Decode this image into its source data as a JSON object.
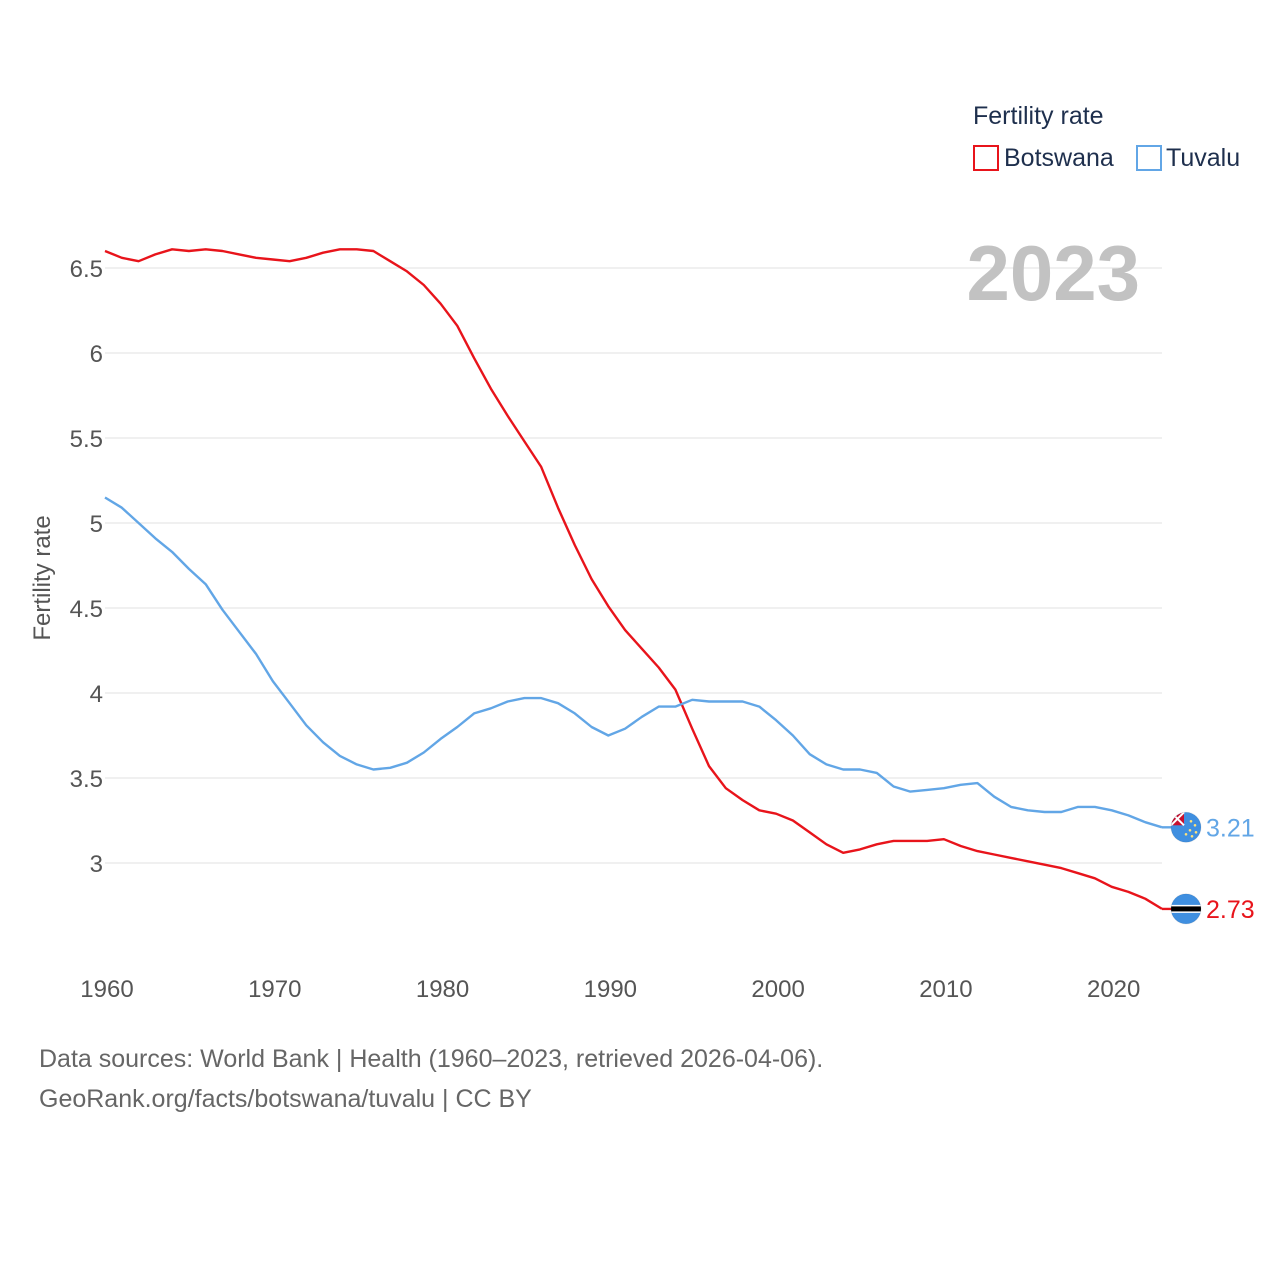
{
  "chart_data": {
    "type": "line",
    "title": "",
    "ylabel": "Fertility rate",
    "xlabel": "",
    "year_display": "2023",
    "legend": {
      "title": "Fertility rate",
      "position": "top-right"
    },
    "xlim": [
      1960,
      2023
    ],
    "ylim": [
      2.5,
      6.7
    ],
    "x_ticks": [
      1960,
      1970,
      1980,
      1990,
      2000,
      2010,
      2020
    ],
    "x_tick_labels": [
      "1960",
      "1970",
      "1980",
      "1990",
      "2000",
      "2010",
      "2020"
    ],
    "y_ticks": [
      3,
      3.5,
      4,
      4.5,
      5,
      5.5,
      6,
      6.5
    ],
    "y_tick_labels": [
      "3",
      "3.5",
      "4",
      "4.5",
      "5",
      "5.5",
      "6",
      "6.5"
    ],
    "grid": true,
    "x": [
      1960,
      1961,
      1962,
      1963,
      1964,
      1965,
      1966,
      1967,
      1968,
      1969,
      1970,
      1971,
      1972,
      1973,
      1974,
      1975,
      1976,
      1977,
      1978,
      1979,
      1980,
      1981,
      1982,
      1983,
      1984,
      1985,
      1986,
      1987,
      1988,
      1989,
      1990,
      1991,
      1992,
      1993,
      1994,
      1995,
      1996,
      1997,
      1998,
      1999,
      2000,
      2001,
      2002,
      2003,
      2004,
      2005,
      2006,
      2007,
      2008,
      2009,
      2010,
      2011,
      2012,
      2013,
      2014,
      2015,
      2016,
      2017,
      2018,
      2019,
      2020,
      2021,
      2022,
      2023
    ],
    "series": [
      {
        "name": "Botswana",
        "color": "#e8141b",
        "end_label": "2.73",
        "values": [
          6.6,
          6.56,
          6.54,
          6.58,
          6.61,
          6.6,
          6.61,
          6.6,
          6.58,
          6.56,
          6.55,
          6.54,
          6.56,
          6.59,
          6.61,
          6.61,
          6.6,
          6.54,
          6.48,
          6.4,
          6.29,
          6.16,
          5.97,
          5.79,
          5.63,
          5.48,
          5.33,
          5.09,
          4.87,
          4.67,
          4.51,
          4.37,
          4.26,
          4.15,
          4.02,
          3.79,
          3.57,
          3.44,
          3.37,
          3.31,
          3.29,
          3.25,
          3.18,
          3.11,
          3.06,
          3.08,
          3.11,
          3.13,
          3.13,
          3.13,
          3.14,
          3.1,
          3.07,
          3.05,
          3.03,
          3.01,
          2.99,
          2.97,
          2.94,
          2.91,
          2.86,
          2.83,
          2.79,
          2.73
        ]
      },
      {
        "name": "Tuvalu",
        "color": "#62a6e6",
        "end_label": "3.21",
        "values": [
          5.15,
          5.09,
          5.0,
          4.91,
          4.83,
          4.73,
          4.64,
          4.49,
          4.36,
          4.23,
          4.07,
          3.94,
          3.81,
          3.71,
          3.63,
          3.58,
          3.55,
          3.56,
          3.59,
          3.65,
          3.73,
          3.8,
          3.88,
          3.91,
          3.95,
          3.97,
          3.97,
          3.94,
          3.88,
          3.8,
          3.75,
          3.79,
          3.86,
          3.92,
          3.92,
          3.96,
          3.95,
          3.95,
          3.95,
          3.92,
          3.84,
          3.75,
          3.64,
          3.58,
          3.55,
          3.55,
          3.53,
          3.45,
          3.42,
          3.43,
          3.44,
          3.46,
          3.47,
          3.39,
          3.33,
          3.31,
          3.3,
          3.3,
          3.33,
          3.33,
          3.31,
          3.28,
          3.24,
          3.21
        ]
      }
    ]
  },
  "footer": {
    "sources": "Data sources: World Bank | Health (1960–2023, retrieved 2026-04-06).",
    "attribution": "GeoRank.org/facts/botswana/tuvalu | CC BY"
  }
}
